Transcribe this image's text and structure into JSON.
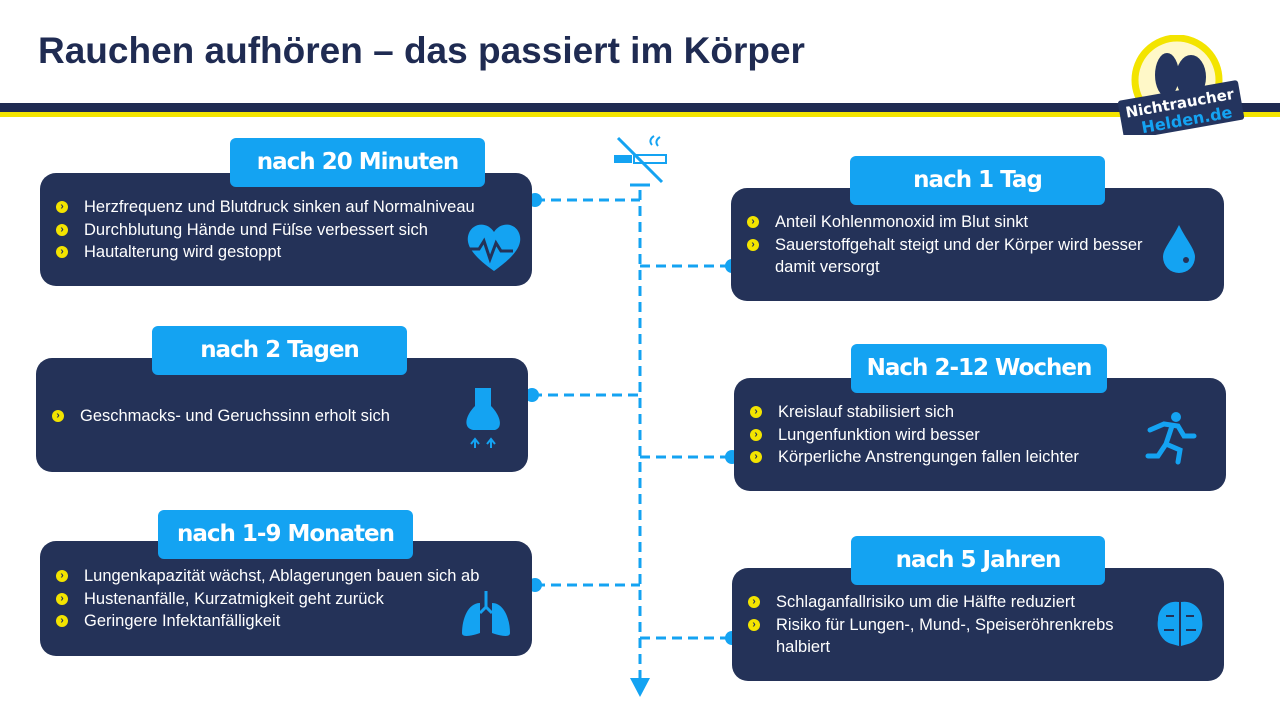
{
  "title": "Rauchen aufhören – das passiert im Körper",
  "logo": {
    "line1": "Nichtraucher",
    "line2": "Helden.de"
  },
  "colors": {
    "navy": "#243258",
    "accent": "#14a3f2",
    "yellow": "#f3e400"
  },
  "stages": [
    {
      "label": "nach 20 Minuten",
      "icon": "heart-pulse-icon",
      "items": [
        "Herzfrequenz und Blutdruck sinken auf Normalniveau",
        "Durchblutung Hände und Füſse verbessert sich",
        "Hautalterung wird gestoppt"
      ]
    },
    {
      "label": "nach 1 Tag",
      "icon": "blood-drop-icon",
      "items": [
        "Anteil Kohlenmonoxid im Blut sinkt",
        "Sauerstoffgehalt steigt und der Körper wird besser damit versorgt"
      ]
    },
    {
      "label": "nach 2 Tagen",
      "icon": "nose-icon",
      "items": [
        "Geschmacks- und Geruchssinn erholt sich"
      ]
    },
    {
      "label": "Nach 2-12 Wochen",
      "icon": "running-person-icon",
      "items": [
        "Kreislauf stabilisiert sich",
        "Lungenfunktion wird besser",
        "Körperliche Anstrengungen fallen leichter"
      ]
    },
    {
      "label": "nach 1-9 Monaten",
      "icon": "lungs-icon",
      "items": [
        "Lungenkapazität wächst, Ablagerungen bauen sich ab",
        "Hustenanfälle, Kurzatmigkeit geht zurück",
        "Geringere Infektanfälligkeit"
      ]
    },
    {
      "label": "nach 5 Jahren",
      "icon": "brain-icon",
      "items": [
        "Schlaganfallrisiko um die Hälfte reduziert",
        "Risiko für Lungen-, Mund-, Speiseröhrenkrebs halbiert"
      ]
    }
  ]
}
